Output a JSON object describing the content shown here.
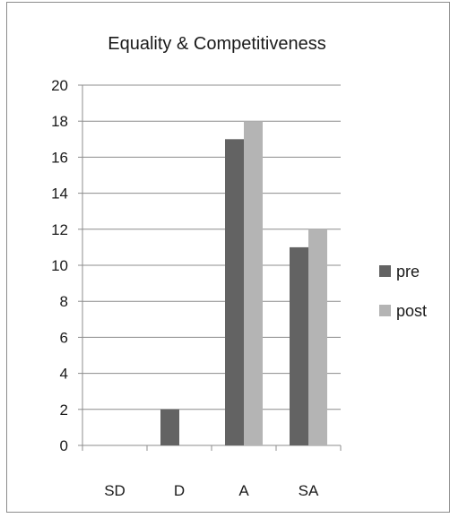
{
  "chart_data": {
    "type": "bar",
    "title": "Equality & Competitiveness",
    "xlabel": "",
    "ylabel": "",
    "categories": [
      "SD",
      "D",
      "A",
      "SA"
    ],
    "series": [
      {
        "name": "pre",
        "values": [
          0,
          2,
          17,
          11
        ],
        "color": "#636363"
      },
      {
        "name": "post",
        "values": [
          0,
          0,
          18,
          12
        ],
        "color": "#b4b4b4"
      }
    ],
    "ylim": [
      0,
      20
    ],
    "yticks": [
      "0",
      "2",
      "4",
      "6",
      "8",
      "10",
      "12",
      "14",
      "16",
      "18",
      "20"
    ],
    "grid": true,
    "legend": "right"
  }
}
